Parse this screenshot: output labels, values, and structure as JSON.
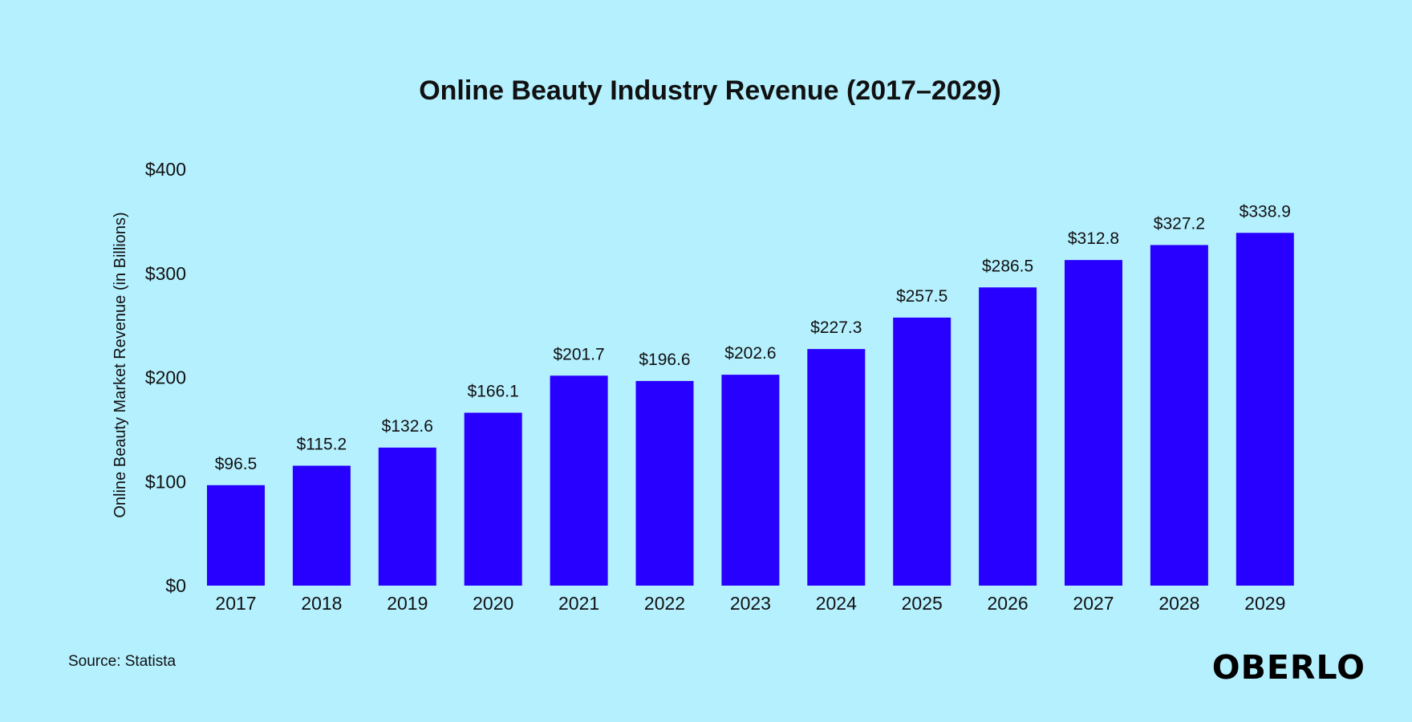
{
  "colors": {
    "background": "#b5f0ff",
    "bar": "#2800ff",
    "text": "#111111"
  },
  "source": "Source: Statista",
  "brand": "OBERLO",
  "chart_data": {
    "type": "bar",
    "title": "Online Beauty Industry Revenue (2017–2029)",
    "xlabel": "",
    "ylabel": "Online Beauty Market Revenue (in Billions)",
    "ylim": [
      0,
      400
    ],
    "yticks": [
      0,
      100,
      200,
      300,
      400
    ],
    "ytick_labels": [
      "$0",
      "$100",
      "$200",
      "$300",
      "$400"
    ],
    "grid": false,
    "categories": [
      "2017",
      "2018",
      "2019",
      "2020",
      "2021",
      "2022",
      "2023",
      "2024",
      "2025",
      "2026",
      "2027",
      "2028",
      "2029"
    ],
    "values": [
      96.5,
      115.2,
      132.6,
      166.1,
      201.7,
      196.6,
      202.6,
      227.3,
      257.5,
      286.5,
      312.8,
      327.2,
      338.9
    ],
    "value_labels": [
      "$96.5",
      "$115.2",
      "$132.6",
      "$166.1",
      "$201.7",
      "$196.6",
      "$202.6",
      "$227.3",
      "$257.5",
      "$286.5",
      "$312.8",
      "$327.2",
      "$338.9"
    ]
  }
}
